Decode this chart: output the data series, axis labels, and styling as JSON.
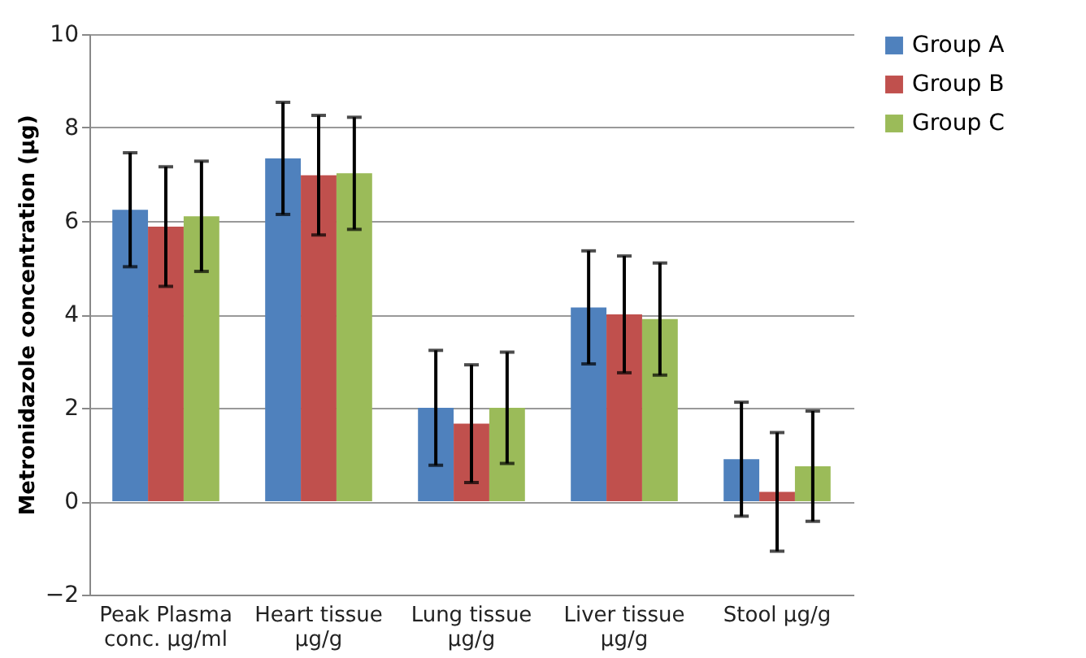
{
  "chart_data": {
    "type": "bar",
    "ylabel": "Metronidazole concentration (µg)",
    "categories": [
      "Peak Plasma conc. µg/ml",
      "Heart tissue µg/g",
      "Lung tissue µg/g",
      "Liver tissue µg/g",
      "Stool µg/g"
    ],
    "series": [
      {
        "name": "Group A",
        "color": "#4f81bd",
        "values": [
          6.24,
          7.34,
          2.0,
          4.15,
          0.9
        ],
        "errors": [
          1.22,
          1.2,
          1.23,
          1.21,
          1.22
        ]
      },
      {
        "name": "Group B",
        "color": "#c0504d",
        "values": [
          5.88,
          6.98,
          1.66,
          4.0,
          0.2
        ],
        "errors": [
          1.28,
          1.28,
          1.26,
          1.25,
          1.27
        ]
      },
      {
        "name": "Group C",
        "color": "#9bbb59",
        "values": [
          6.1,
          7.02,
          2.0,
          3.9,
          0.75
        ],
        "errors": [
          1.18,
          1.2,
          1.19,
          1.2,
          1.18
        ]
      }
    ],
    "ylim": [
      -2,
      10
    ],
    "yticks": [
      -2,
      0,
      2,
      4,
      6,
      8,
      10
    ],
    "grid": "y",
    "legend": "right"
  }
}
